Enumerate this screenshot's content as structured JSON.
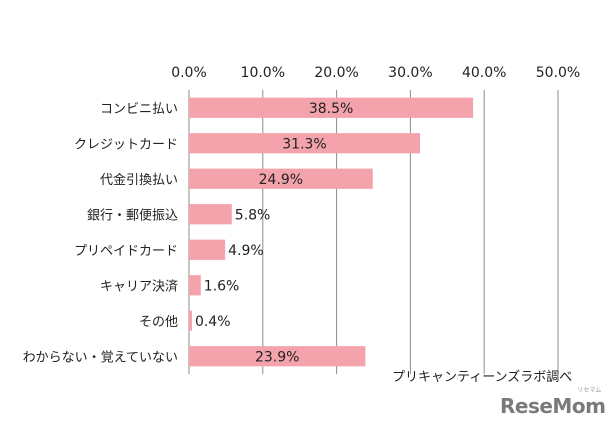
{
  "chart_data": {
    "type": "bar",
    "orientation": "horizontal",
    "categories": [
      "コンビニ払い",
      "クレジットカード",
      "代金引換払い",
      "銀行・郵便振込",
      "プリペイドカード",
      "キャリア決済",
      "その他",
      "わからない・覚えていない"
    ],
    "values": [
      38.5,
      31.3,
      24.9,
      5.8,
      4.9,
      1.6,
      0.4,
      23.9
    ],
    "value_labels": [
      "38.5%",
      "31.3%",
      "24.9%",
      "5.8%",
      "4.9%",
      "1.6%",
      "0.4%",
      "23.9%"
    ],
    "x_ticks": [
      "0.0%",
      "10.0%",
      "20.0%",
      "30.0%",
      "40.0%",
      "50.0%"
    ],
    "xlim": [
      0,
      50
    ],
    "axis_position": "top",
    "grid": true,
    "bar_color": "#f4a3ac",
    "title": "",
    "xlabel": "",
    "ylabel": ""
  },
  "source_note": "プリキャンティーンズラボ調べ",
  "logo": {
    "text": "ReseMom",
    "ruby": "リセマム"
  }
}
